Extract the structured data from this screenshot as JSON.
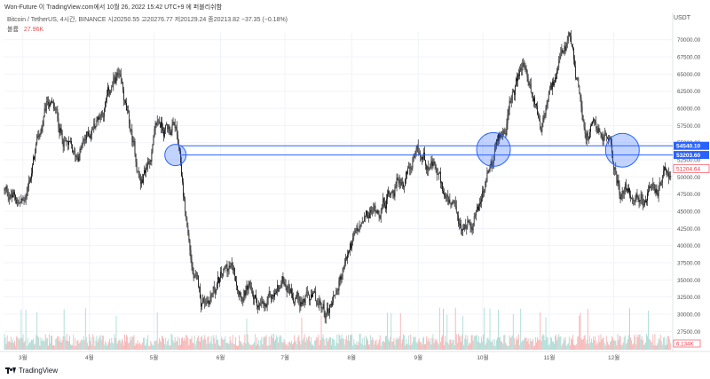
{
  "caption": "Won-Future 이 TradingView.com에서 10월 26, 2022 15:42 UTC+9 에 퍼블리쉬함",
  "legend": {
    "symbol": "Bitcoin / TetherUS, 4시간, BINANCE",
    "ohlc": "시20250.55  고20276.77  저20129.24  종20213.82  −37.35 (−0.18%)",
    "volume_label": "볼륨",
    "volume_value": "27.96K"
  },
  "currency": "USDT",
  "footer": "TradingView",
  "colors": {
    "candle": "#000000",
    "line": "#2962ff",
    "badge_bg": "#2962ff",
    "last_price": "#f23645",
    "vol_up": "#9ed6cf",
    "vol_down": "#f5a5a5"
  },
  "chart_data": {
    "type": "candlestick",
    "title": "",
    "xlabel": "",
    "ylabel": "",
    "ylim": [
      25000,
      71500
    ],
    "y_ticks": [
      70000,
      67500,
      65000,
      62500,
      60000,
      57500,
      55000,
      52500,
      50000,
      47500,
      45000,
      42500,
      40000,
      37500,
      35000,
      32500,
      30000,
      27500
    ],
    "x_ticks": [
      "3월",
      "4월",
      "5월",
      "6월",
      "7월",
      "8월",
      "9월",
      "10월",
      "11월",
      "12월"
    ],
    "price_path": [
      {
        "t": "2021-02-20",
        "close": 48000
      },
      {
        "t": "2021-03-01",
        "close": 46000
      },
      {
        "t": "2021-03-13",
        "close": 61000
      },
      {
        "t": "2021-03-25",
        "close": 52000
      },
      {
        "t": "2021-04-14",
        "close": 64500
      },
      {
        "t": "2021-04-25",
        "close": 49000
      },
      {
        "t": "2021-05-03",
        "close": 57500
      },
      {
        "t": "2021-05-11",
        "close": 57000
      },
      {
        "t": "2021-05-19",
        "close": 36000
      },
      {
        "t": "2021-05-23",
        "close": 31500
      },
      {
        "t": "2021-06-05",
        "close": 36500
      },
      {
        "t": "2021-06-22",
        "close": 30000
      },
      {
        "t": "2021-07-01",
        "close": 35000
      },
      {
        "t": "2021-07-20",
        "close": 29800
      },
      {
        "t": "2021-08-01",
        "close": 40000
      },
      {
        "t": "2021-08-22",
        "close": 49500
      },
      {
        "t": "2021-09-06",
        "close": 52500
      },
      {
        "t": "2021-09-21",
        "close": 41000
      },
      {
        "t": "2021-10-01",
        "close": 47500
      },
      {
        "t": "2021-10-08",
        "close": 54500
      },
      {
        "t": "2021-10-20",
        "close": 66500
      },
      {
        "t": "2021-10-28",
        "close": 58000
      },
      {
        "t": "2021-11-10",
        "close": 69000
      },
      {
        "t": "2021-11-18",
        "close": 57000
      },
      {
        "t": "2021-11-28",
        "close": 56000
      },
      {
        "t": "2021-12-04",
        "close": 48000
      },
      {
        "t": "2021-12-14",
        "close": 47000
      },
      {
        "t": "2021-12-23",
        "close": 48500
      },
      {
        "t": "2021-12-28",
        "close": 51200
      }
    ],
    "horizontal_levels": [
      {
        "price": 54540.1,
        "label": "54540.10"
      },
      {
        "price": 53203.6,
        "label": "53203.60"
      }
    ],
    "last_price": {
      "price": 51204.64,
      "label": "51204.64"
    },
    "volume_axis_label": "6.134K",
    "highlight_circles": [
      {
        "t": "2021-05-11",
        "price": 53200
      },
      {
        "t": "2021-10-06",
        "price": 54000
      },
      {
        "t": "2021-12-05",
        "price": 53900
      }
    ]
  }
}
